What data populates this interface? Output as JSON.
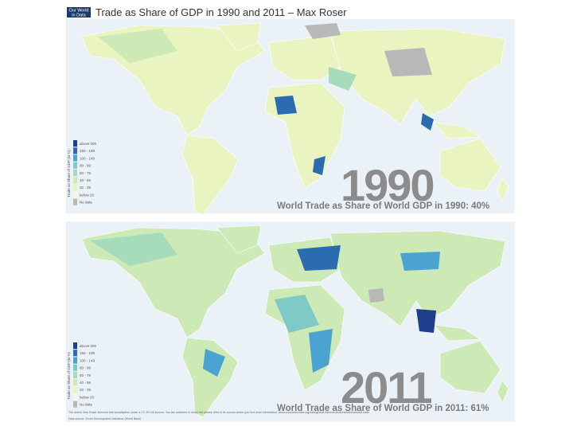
{
  "header": {
    "logo": [
      "Our World",
      "in Data"
    ],
    "title": "Trade as Share of GDP in 1990 and 2011 – Max Roser"
  },
  "legend": {
    "axis_label": "Trade as Share of GDP (in %)",
    "items": [
      {
        "label": "above 200",
        "color": "#1f3f8c"
      },
      {
        "label": "150 - 199",
        "color": "#2b6cb0"
      },
      {
        "label": "100 - 149",
        "color": "#4aa3d0"
      },
      {
        "label": "80 - 99",
        "color": "#7fc9c6"
      },
      {
        "label": "60 - 79",
        "color": "#a6dbbb"
      },
      {
        "label": "40 - 59",
        "color": "#cde9b5"
      },
      {
        "label": "20 - 39",
        "color": "#e9f4c0"
      },
      {
        "label": "below 20",
        "color": "#f8f9dc"
      },
      {
        "label": "No data",
        "color": "#b8b8b8"
      }
    ]
  },
  "maps": [
    {
      "year": "1990",
      "caption": "World Trade as Share of World GDP in 1990: 40%"
    },
    {
      "year": "2011",
      "caption": "World Trade as Share of World GDP in 2011: 61%"
    }
  ],
  "footer": {
    "license": "The author Max Roser licensed this visualisation under a CC BY-SA license. You are welcome to share but please refer to its source where you find more information: www.ourworldindata.org/data/global-interconnections/international-trade",
    "source": "Data source: World Development Indicators (World Bank)"
  }
}
